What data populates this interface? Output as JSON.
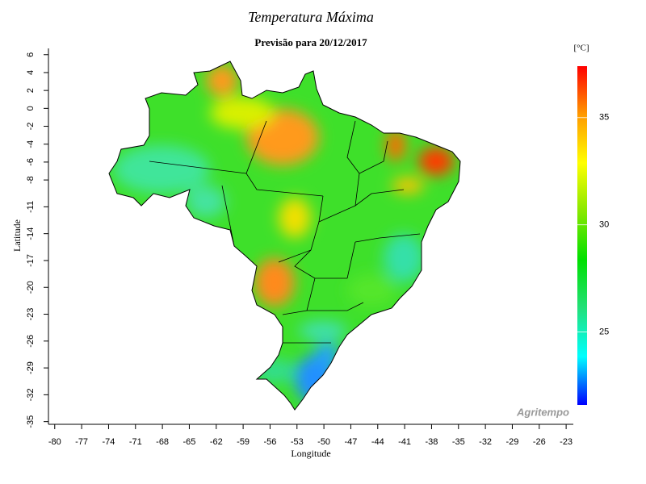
{
  "chart_data": {
    "type": "map",
    "title": "Temperatura Máxima",
    "subtitle": "Previsão para 20/12/2017",
    "x_label": "Longitude",
    "y_label": "Latitude",
    "xlim": [
      -80.7,
      -22.2
    ],
    "xticks": [
      -80,
      -77,
      -74,
      -71,
      -68,
      -65,
      -62,
      -59,
      -56,
      -53,
      -50,
      -47,
      -44,
      -41,
      -38,
      -35,
      -32,
      -29,
      -26,
      -23
    ],
    "ylim": [
      -35.3,
      6.7
    ],
    "yticks": [
      6,
      4,
      2,
      0,
      -2,
      -4,
      -6,
      -8,
      -11,
      -14,
      -17,
      -20,
      -23,
      -26,
      -29,
      -32,
      -35
    ],
    "colorbar": {
      "unit": "[°C]",
      "lim": [
        21.6,
        37.4
      ],
      "ticks": [
        25,
        30,
        35
      ],
      "colors": [
        "#0000ff",
        "#00ffff",
        "#22e07a",
        "#00e000",
        "#88e800",
        "#ffff00",
        "#ff9900",
        "#ff0000"
      ]
    },
    "watermark": "Agritempo"
  }
}
